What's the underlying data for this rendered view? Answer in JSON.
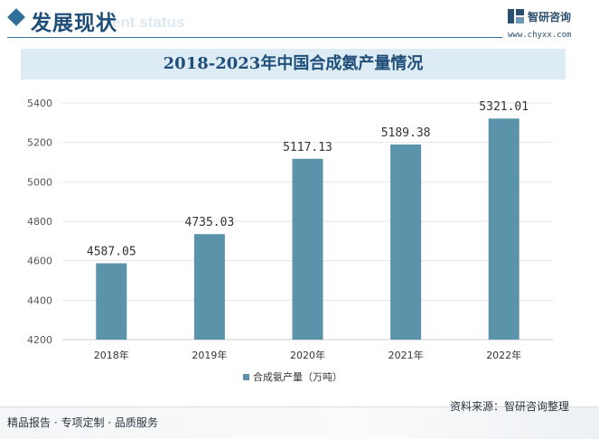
{
  "header": {
    "section_title": "发展现状",
    "section_subtitle": "ent status",
    "brand_name": "智研咨询",
    "brand_url": "www.chyxx.com"
  },
  "chart_data": {
    "type": "bar",
    "title": "2018-2023年中国合成氨产量情况",
    "categories": [
      "2018年",
      "2019年",
      "2020年",
      "2021年",
      "2022年"
    ],
    "series": [
      {
        "name": "合成氨产量（万吨）",
        "values": [
          4587.05,
          4735.03,
          5117.13,
          5189.38,
          5321.01
        ]
      }
    ],
    "data_labels": [
      "4587.05",
      "4735.03",
      "5117.13",
      "5189.38",
      "5321.01"
    ],
    "ylim": [
      4200,
      5400
    ],
    "yticks": [
      4200,
      4400,
      4600,
      4800,
      5000,
      5200,
      5400
    ],
    "grid": true,
    "legend": "bottom-center",
    "colors": {
      "bar": "#5b93aa",
      "grid": "#e4e4e4",
      "axis": "#cfcfcf"
    }
  },
  "footer": {
    "left_text": "精品报告 · 专项定制 · 品质服务",
    "source": "资料来源：智研咨询整理"
  }
}
